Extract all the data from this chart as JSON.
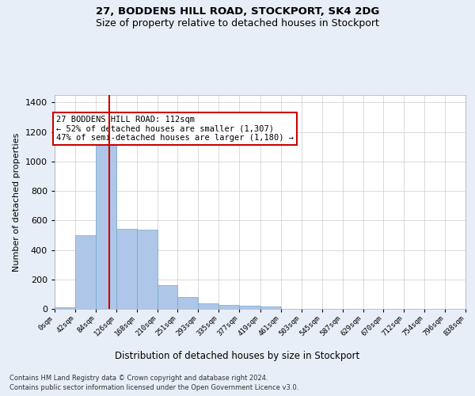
{
  "title1": "27, BODDENS HILL ROAD, STOCKPORT, SK4 2DG",
  "title2": "Size of property relative to detached houses in Stockport",
  "xlabel": "Distribution of detached houses by size in Stockport",
  "ylabel": "Number of detached properties",
  "footnote1": "Contains HM Land Registry data © Crown copyright and database right 2024.",
  "footnote2": "Contains public sector information licensed under the Open Government Licence v3.0.",
  "bar_edges": [
    0,
    42,
    84,
    126,
    168,
    210,
    251,
    293,
    335,
    377,
    419,
    461,
    503,
    545,
    587,
    629,
    670,
    712,
    754,
    796,
    838
  ],
  "bar_heights": [
    10,
    500,
    1150,
    540,
    535,
    160,
    80,
    35,
    28,
    20,
    15,
    0,
    0,
    0,
    0,
    0,
    0,
    0,
    0,
    0
  ],
  "bar_color": "#aec6e8",
  "bar_edgecolor": "#6fa8d0",
  "property_size": 112,
  "vline_color": "#cc0000",
  "annotation_text": "27 BODDENS HILL ROAD: 112sqm\n← 52% of detached houses are smaller (1,307)\n47% of semi-detached houses are larger (1,180) →",
  "annotation_box_color": "#ffffff",
  "annotation_box_edgecolor": "#cc0000",
  "ylim": [
    0,
    1450
  ],
  "background_color": "#e8eef7",
  "plot_background": "#ffffff",
  "grid_color": "#cccccc"
}
